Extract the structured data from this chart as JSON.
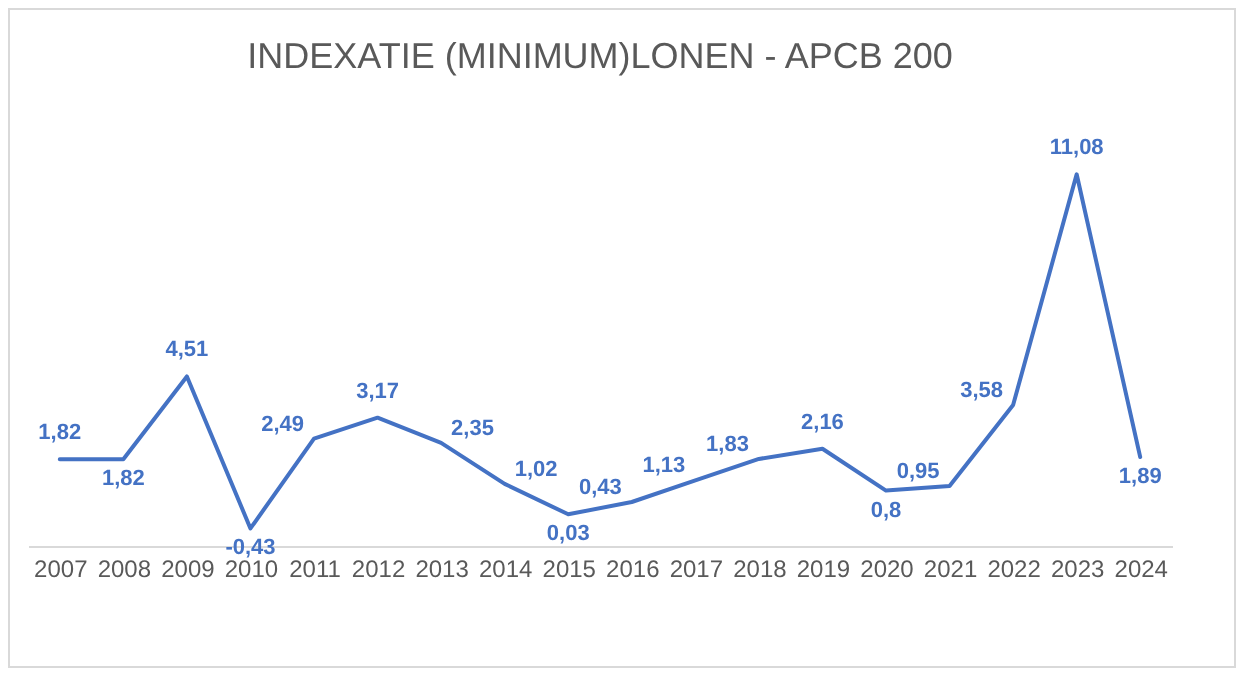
{
  "chart_data": {
    "type": "line",
    "title": "INDEXATIE (MINIMUM)LONEN - APCB 200",
    "categories": [
      "2007",
      "2008",
      "2009",
      "2010",
      "2011",
      "2012",
      "2013",
      "2014",
      "2015",
      "2016",
      "2017",
      "2018",
      "2019",
      "2020",
      "2021",
      "2022",
      "2023",
      "2024"
    ],
    "series": [
      {
        "color": "#4472c4",
        "values": [
          1.82,
          1.82,
          4.51,
          -0.43,
          2.49,
          3.17,
          2.35,
          1.02,
          0.03,
          0.43,
          1.13,
          1.83,
          2.16,
          0.8,
          0.95,
          3.58,
          11.08,
          1.89
        ],
        "value_labels": [
          "1,82",
          "1,82",
          "4,51",
          "-0,43",
          "2,49",
          "3,17",
          "2,35",
          "1,02",
          "0,03",
          "0,43",
          "1,13",
          "1,83",
          "2,16",
          "0,8",
          "0,95",
          "3,58",
          "11,08",
          "1,89"
        ]
      }
    ],
    "tick_labels": "x",
    "grid": false,
    "legend": false,
    "marker": "none",
    "line_style": "solid"
  }
}
